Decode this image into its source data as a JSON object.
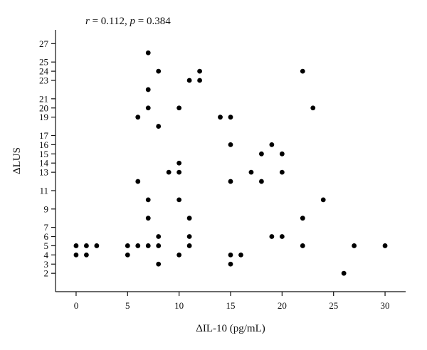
{
  "annotation": {
    "r_symbol": "r",
    "r_text": " = 0.112, ",
    "p_symbol": "p",
    "p_text": " = 0.384"
  },
  "chart_data": {
    "type": "scatter",
    "title": "",
    "xlabel": "ΔIL-10 (pg/mL)",
    "ylabel": "ΔLUS",
    "xlim": [
      -2,
      32
    ],
    "ylim": [
      0,
      28.5
    ],
    "x_ticks": [
      0,
      5,
      10,
      15,
      20,
      25,
      30
    ],
    "y_ticks": [
      2,
      3,
      4,
      5,
      6,
      7,
      9,
      11,
      13,
      14,
      15,
      16,
      17,
      19,
      20,
      21,
      23,
      24,
      25,
      27
    ],
    "grid": false,
    "legend": "none",
    "marker_color": "#000000",
    "points": [
      {
        "x": 0,
        "y": 5
      },
      {
        "x": 0,
        "y": 4
      },
      {
        "x": 1,
        "y": 5
      },
      {
        "x": 1,
        "y": 4
      },
      {
        "x": 2,
        "y": 5
      },
      {
        "x": 5,
        "y": 5
      },
      {
        "x": 5,
        "y": 4
      },
      {
        "x": 6,
        "y": 5
      },
      {
        "x": 6,
        "y": 12
      },
      {
        "x": 6,
        "y": 19
      },
      {
        "x": 7,
        "y": 26
      },
      {
        "x": 7,
        "y": 22
      },
      {
        "x": 7,
        "y": 20
      },
      {
        "x": 7,
        "y": 10
      },
      {
        "x": 7,
        "y": 8
      },
      {
        "x": 7,
        "y": 5
      },
      {
        "x": 8,
        "y": 24
      },
      {
        "x": 8,
        "y": 18
      },
      {
        "x": 8,
        "y": 6
      },
      {
        "x": 8,
        "y": 5
      },
      {
        "x": 8,
        "y": 3
      },
      {
        "x": 9,
        "y": 13
      },
      {
        "x": 10,
        "y": 20
      },
      {
        "x": 10,
        "y": 14
      },
      {
        "x": 10,
        "y": 13
      },
      {
        "x": 10,
        "y": 10
      },
      {
        "x": 10,
        "y": 4
      },
      {
        "x": 11,
        "y": 23
      },
      {
        "x": 11,
        "y": 8
      },
      {
        "x": 11,
        "y": 6
      },
      {
        "x": 11,
        "y": 5
      },
      {
        "x": 12,
        "y": 24
      },
      {
        "x": 12,
        "y": 23
      },
      {
        "x": 14,
        "y": 19
      },
      {
        "x": 15,
        "y": 19
      },
      {
        "x": 15,
        "y": 16
      },
      {
        "x": 15,
        "y": 12
      },
      {
        "x": 15,
        "y": 4
      },
      {
        "x": 15,
        "y": 3
      },
      {
        "x": 16,
        "y": 4
      },
      {
        "x": 17,
        "y": 13
      },
      {
        "x": 18,
        "y": 15
      },
      {
        "x": 18,
        "y": 12
      },
      {
        "x": 19,
        "y": 16
      },
      {
        "x": 19,
        "y": 6
      },
      {
        "x": 20,
        "y": 15
      },
      {
        "x": 20,
        "y": 13
      },
      {
        "x": 20,
        "y": 6
      },
      {
        "x": 22,
        "y": 24
      },
      {
        "x": 22,
        "y": 8
      },
      {
        "x": 22,
        "y": 5
      },
      {
        "x": 23,
        "y": 20
      },
      {
        "x": 24,
        "y": 10
      },
      {
        "x": 26,
        "y": 2
      },
      {
        "x": 27,
        "y": 5
      },
      {
        "x": 30,
        "y": 5
      }
    ]
  }
}
